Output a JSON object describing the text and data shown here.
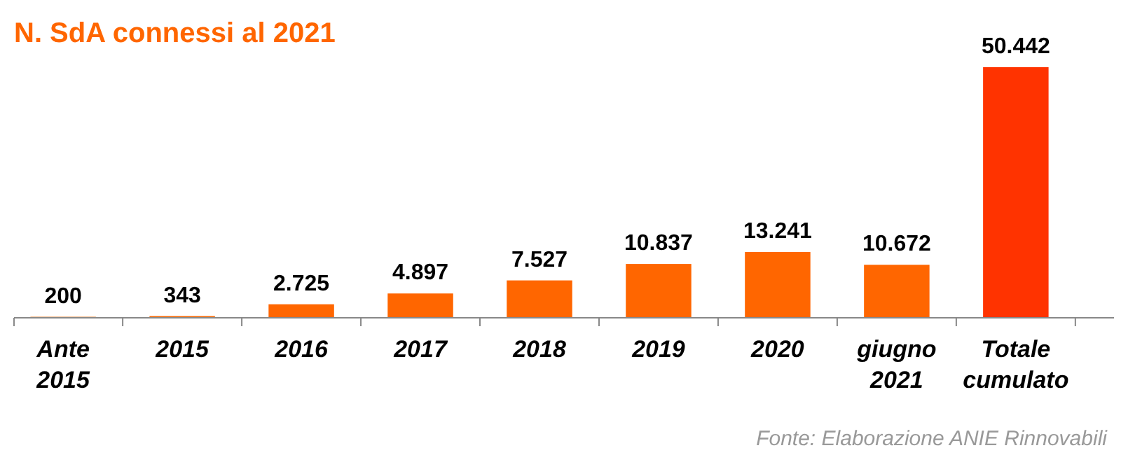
{
  "chart_data": {
    "type": "bar",
    "title": "N. SdA connessi al 2021",
    "categories": [
      "Ante 2015",
      "2015",
      "2016",
      "2017",
      "2018",
      "2019",
      "2020",
      "giugno 2021",
      "Totale cumulato"
    ],
    "values": [
      200,
      343,
      2725,
      4897,
      7527,
      10837,
      13241,
      10672,
      50442
    ],
    "colors": [
      "#ff6600",
      "#ff6600",
      "#ff6600",
      "#ff6600",
      "#ff6600",
      "#ff6600",
      "#ff6600",
      "#ff6600",
      "#ff3300"
    ],
    "value_labels": [
      "200",
      "343",
      "2.725",
      "4.897",
      "7.527",
      "10.837",
      "13.241",
      "10.672",
      "50.442"
    ],
    "annotations": [
      "Fonte: Elaborazione ANIE Rinnovabili"
    ]
  }
}
